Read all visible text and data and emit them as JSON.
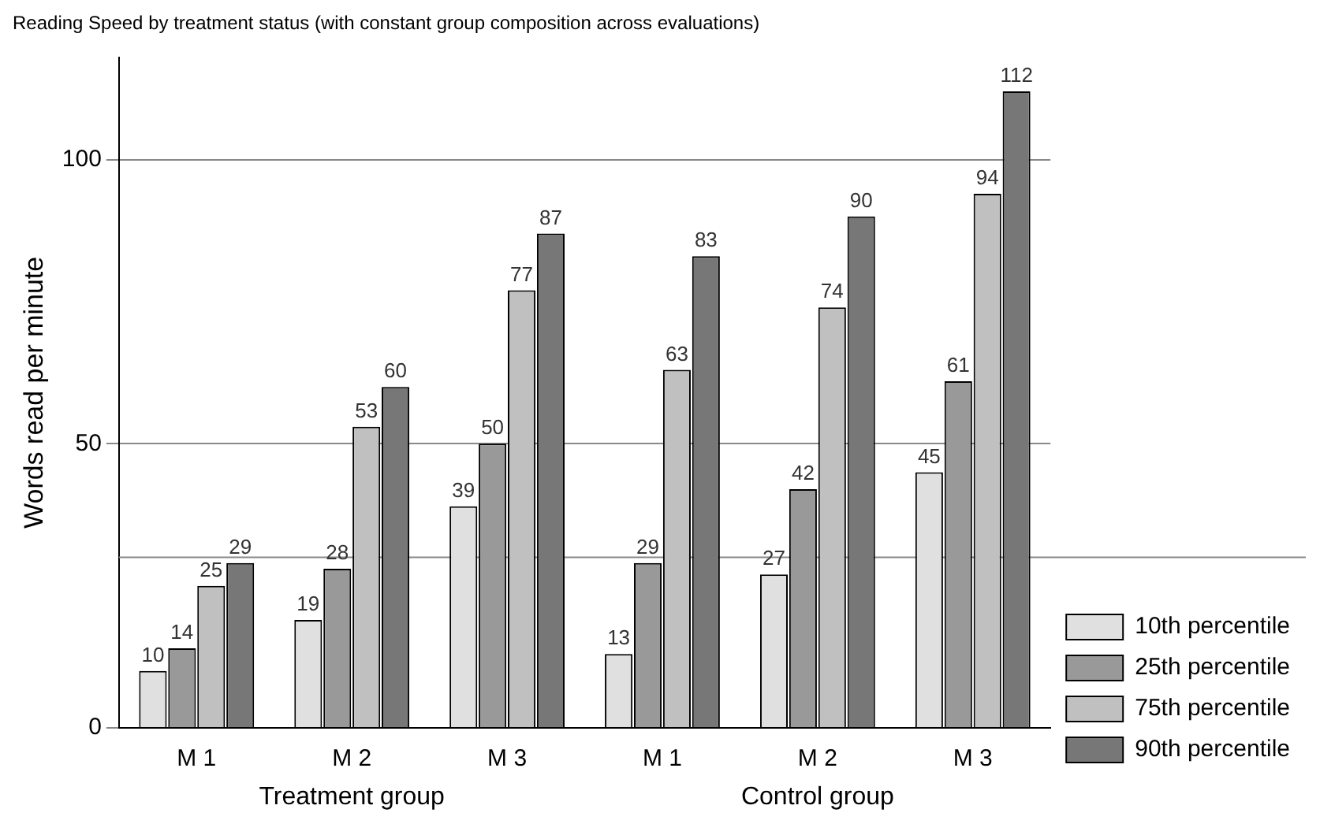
{
  "chart_data": {
    "type": "bar",
    "title": "Reading Speed by treatment status (with constant group composition across evaluations)",
    "ylabel": "Words read per minute",
    "categories": [
      "M 1",
      "M 2",
      "M 3",
      "M 1",
      "M 2",
      "M 3"
    ],
    "series": [
      {
        "name": "10th percentile",
        "color": "#e0e0e0",
        "values": [
          10,
          19,
          39,
          13,
          27,
          45
        ]
      },
      {
        "name": "25th percentile",
        "color": "#999999",
        "values": [
          14,
          28,
          50,
          29,
          42,
          61
        ]
      },
      {
        "name": "75th percentile",
        "color": "#c0c0c0",
        "values": [
          25,
          53,
          77,
          63,
          74,
          94
        ]
      },
      {
        "name": "90th percentile",
        "color": "#777777",
        "values": [
          29,
          60,
          87,
          83,
          90,
          112
        ]
      }
    ],
    "annotations": [
      "Treatment group",
      "Control group"
    ],
    "ylim": [
      0,
      118
    ],
    "yticks": [
      0,
      50,
      100
    ],
    "grid": "y",
    "ref_lines": [
      {
        "axis": "y",
        "value": 30,
        "color": "#888888"
      }
    ],
    "legend": "bottom right",
    "data_labels": true
  }
}
